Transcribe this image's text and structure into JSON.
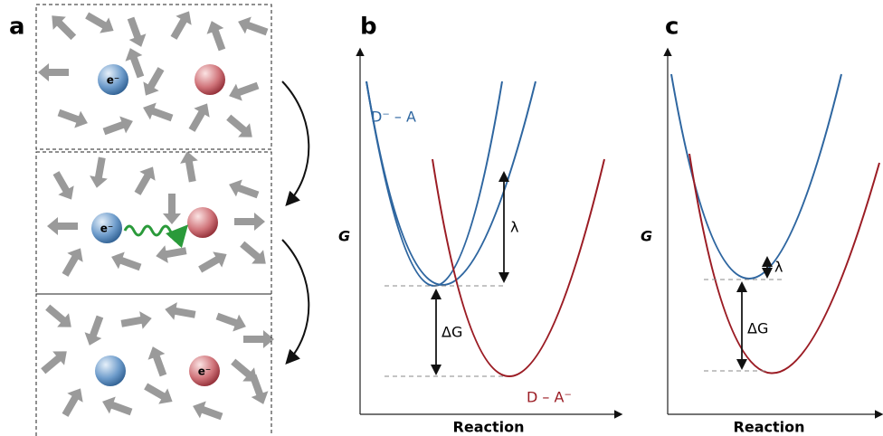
{
  "panels": {
    "a": {
      "label": "a",
      "particles": [
        "e⁻",
        "e⁻",
        "e⁻"
      ]
    },
    "b": {
      "label": "b",
      "y_axis": "G",
      "x_axis": "Reaction",
      "curves": [
        "D⁻ – A",
        "D – A⁻"
      ],
      "lambda": "λ",
      "delta_g": "ΔG"
    },
    "c": {
      "label": "c",
      "y_axis": "G",
      "x_axis": "Reaction",
      "lambda": "λ",
      "delta_g": "ΔG"
    }
  }
}
